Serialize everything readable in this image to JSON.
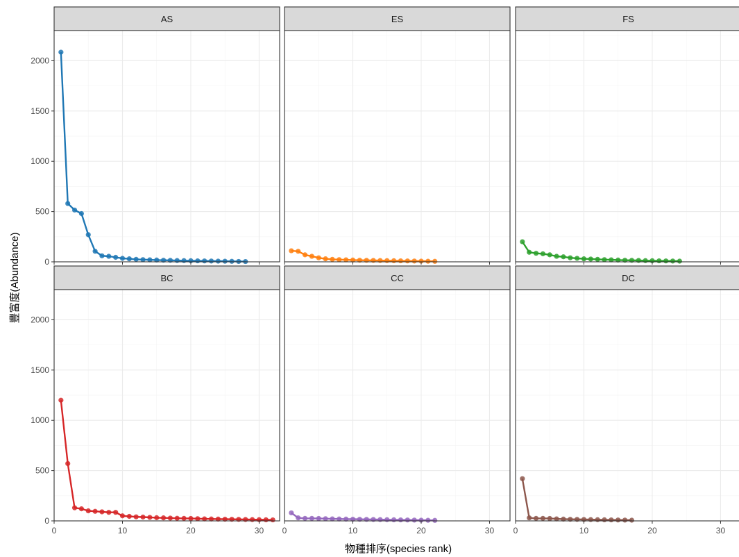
{
  "chart_data": {
    "type": "line",
    "xlabel": "物種排序(species rank)",
    "ylabel": "豐富度(Abundance)",
    "xlim": [
      0,
      33
    ],
    "ylim": [
      0,
      2300
    ],
    "x_ticks": [
      0,
      10,
      20,
      30
    ],
    "y_ticks": [
      0,
      500,
      1000,
      1500,
      2000
    ],
    "grid": true,
    "panels": [
      {
        "name": "AS",
        "color": "#1f77b4",
        "x": [
          1,
          2,
          3,
          4,
          5,
          6,
          7,
          8,
          9,
          10,
          11,
          12,
          13,
          14,
          15,
          16,
          17,
          18,
          19,
          20,
          21,
          22,
          23,
          24,
          25,
          26,
          27,
          28
        ],
        "values": [
          2085,
          580,
          515,
          480,
          270,
          105,
          60,
          55,
          45,
          35,
          30,
          25,
          22,
          20,
          18,
          16,
          15,
          13,
          12,
          11,
          10,
          9,
          8,
          7,
          6,
          5,
          4,
          3
        ]
      },
      {
        "name": "ES",
        "color": "#ff7f0e",
        "x": [
          1,
          2,
          3,
          4,
          5,
          6,
          7,
          8,
          9,
          10,
          11,
          12,
          13,
          14,
          15,
          16,
          17,
          18,
          19,
          20,
          21,
          22
        ],
        "values": [
          110,
          105,
          70,
          55,
          40,
          30,
          25,
          22,
          20,
          18,
          16,
          15,
          14,
          13,
          12,
          11,
          10,
          9,
          8,
          7,
          6,
          5
        ]
      },
      {
        "name": "FS",
        "color": "#2ca02c",
        "x": [
          1,
          2,
          3,
          4,
          5,
          6,
          7,
          8,
          9,
          10,
          11,
          12,
          13,
          14,
          15,
          16,
          17,
          18,
          19,
          20,
          21,
          22,
          23,
          24
        ],
        "values": [
          200,
          95,
          85,
          80,
          70,
          55,
          50,
          40,
          35,
          30,
          28,
          25,
          22,
          20,
          18,
          16,
          15,
          14,
          12,
          11,
          10,
          9,
          8,
          7
        ]
      },
      {
        "name": "BC",
        "color": "#d62728",
        "x": [
          1,
          2,
          3,
          4,
          5,
          6,
          7,
          8,
          9,
          10,
          11,
          12,
          13,
          14,
          15,
          16,
          17,
          18,
          19,
          20,
          21,
          22,
          23,
          24,
          25,
          26,
          27,
          28,
          29,
          30,
          31,
          32
        ],
        "values": [
          1200,
          570,
          130,
          120,
          100,
          95,
          90,
          85,
          85,
          50,
          45,
          40,
          38,
          35,
          32,
          30,
          28,
          26,
          25,
          24,
          22,
          20,
          19,
          18,
          17,
          16,
          15,
          14,
          13,
          12,
          11,
          10
        ]
      },
      {
        "name": "CC",
        "color": "#9467bd",
        "x": [
          1,
          2,
          3,
          4,
          5,
          6,
          7,
          8,
          9,
          10,
          11,
          12,
          13,
          14,
          15,
          16,
          17,
          18,
          19,
          20,
          21,
          22
        ],
        "values": [
          80,
          30,
          25,
          25,
          24,
          22,
          20,
          19,
          18,
          17,
          16,
          15,
          14,
          13,
          12,
          11,
          10,
          9,
          8,
          7,
          6,
          5
        ]
      },
      {
        "name": "DC",
        "color": "#8c564b",
        "x": [
          1,
          2,
          3,
          4,
          5,
          6,
          7,
          8,
          9,
          10,
          11,
          12,
          13,
          14,
          15,
          16,
          17
        ],
        "values": [
          420,
          30,
          25,
          25,
          24,
          20,
          18,
          16,
          15,
          14,
          13,
          12,
          11,
          10,
          9,
          8,
          7
        ]
      }
    ]
  }
}
